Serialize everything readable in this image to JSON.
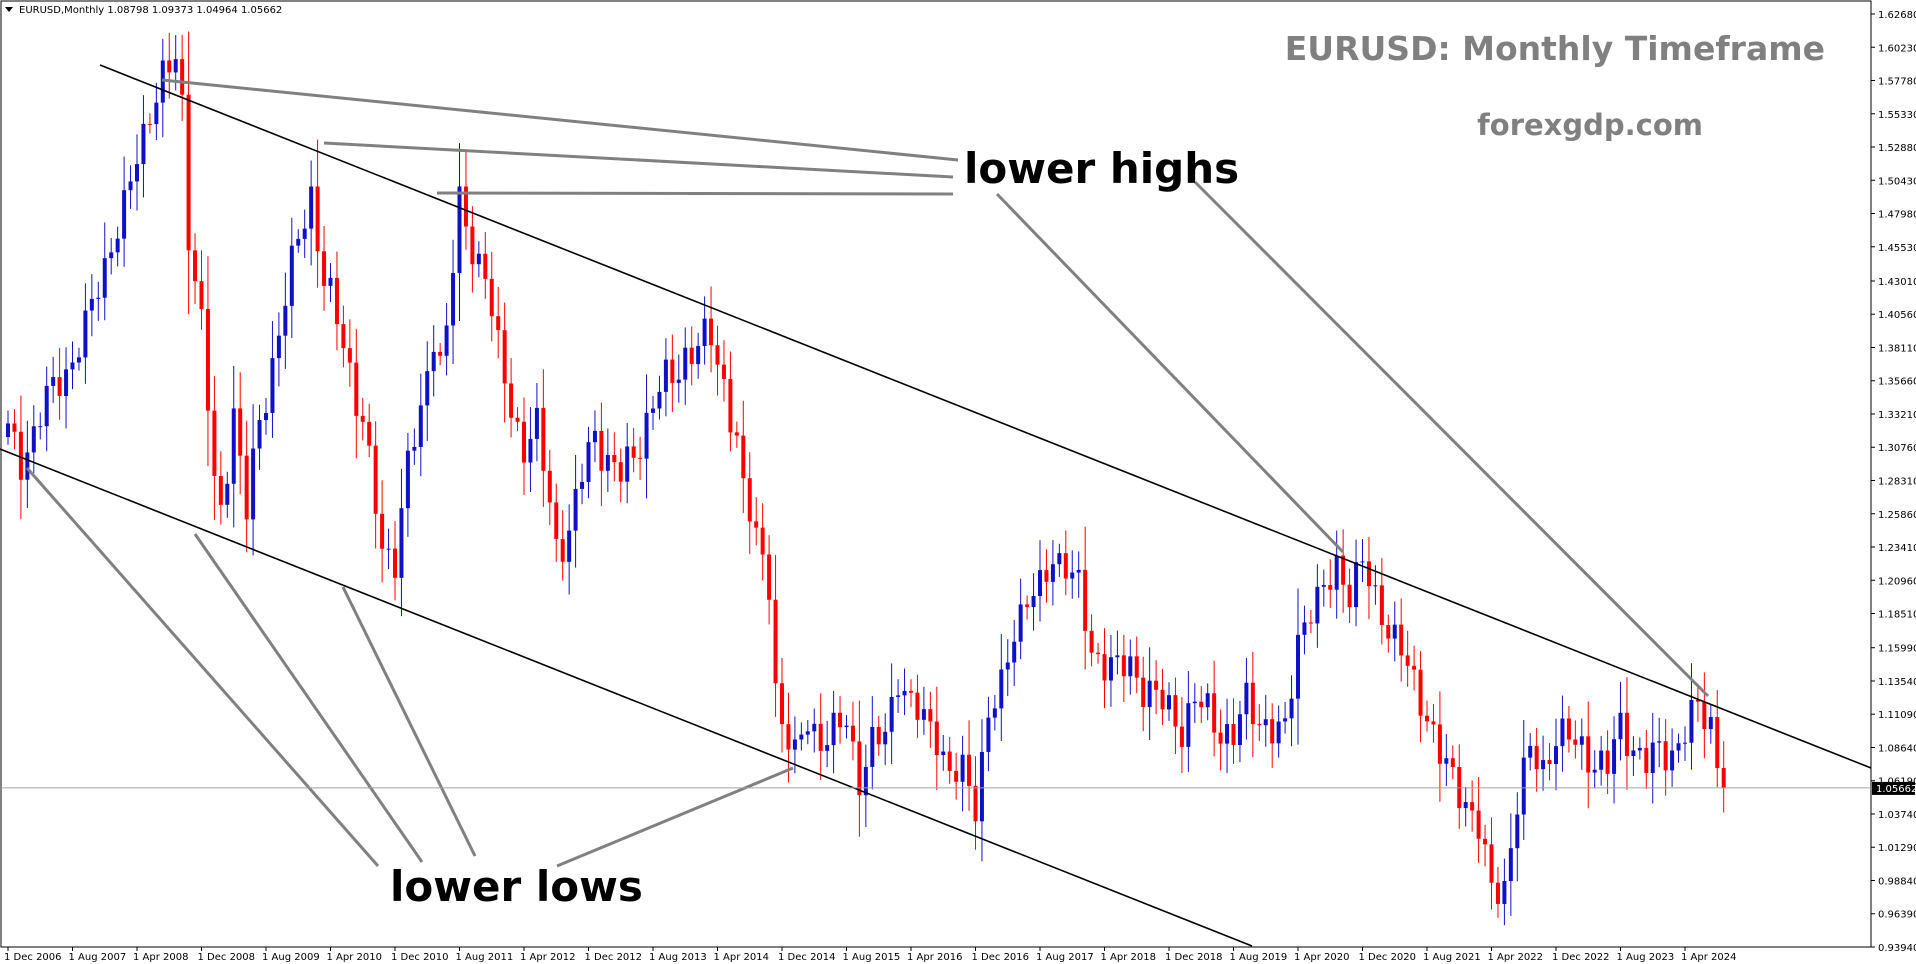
{
  "chart_data": {
    "type": "candlestick",
    "symbol_header": "EURUSD,Monthly  1.08798 1.09373 1.04964 1.05662",
    "title": "EURUSD: Monthly Timeframe",
    "subtitle": "forexgdp.com",
    "annotations": [
      "lower highs",
      "lower lows"
    ],
    "current_price_label": "1.05662",
    "current_price": 1.05662,
    "ylim": [
      0.9394,
      1.6268
    ],
    "y_ticks": [
      "1.62680",
      "1.60230",
      "1.57780",
      "1.55330",
      "1.52880",
      "1.50430",
      "1.47980",
      "1.45530",
      "1.43010",
      "1.40560",
      "1.38110",
      "1.35660",
      "1.33210",
      "1.30760",
      "1.28310",
      "1.25860",
      "1.23410",
      "1.20960",
      "1.18510",
      "1.15990",
      "1.13540",
      "1.11090",
      "1.08640",
      "1.06190",
      "1.03740",
      "1.01290",
      "0.98840",
      "0.96390",
      "0.93940"
    ],
    "x_ticks": [
      "1 Dec 2006",
      "1 Aug 2007",
      "1 Apr 2008",
      "1 Dec 2008",
      "1 Aug 2009",
      "1 Apr 2010",
      "1 Dec 2010",
      "1 Aug 2011",
      "1 Apr 2012",
      "1 Dec 2012",
      "1 Aug 2013",
      "1 Apr 2014",
      "1 Dec 2014",
      "1 Aug 2015",
      "1 Apr 2016",
      "1 Dec 2016",
      "1 Aug 2017",
      "1 Apr 2018",
      "1 Dec 2018",
      "1 Aug 2019",
      "1 Apr 2020",
      "1 Dec 2020",
      "1 Aug 2021",
      "1 Apr 2022",
      "1 Dec 2022",
      "1 Aug 2023",
      "1 Apr 2024"
    ],
    "bull_color": "#1010c8",
    "bear_color": "#ff0000",
    "anchors": [
      [
        0,
        1.318
      ],
      [
        2,
        1.3
      ],
      [
        4,
        1.318
      ],
      [
        6,
        1.34
      ],
      [
        8,
        1.36
      ],
      [
        10,
        1.372
      ],
      [
        12,
        1.392
      ],
      [
        14,
        1.428
      ],
      [
        16,
        1.46
      ],
      [
        18,
        1.48
      ],
      [
        20,
        1.52
      ],
      [
        22,
        1.56
      ],
      [
        24,
        1.578
      ],
      [
        26,
        1.59
      ],
      [
        27,
        1.56
      ],
      [
        28,
        1.47
      ],
      [
        30,
        1.4
      ],
      [
        32,
        1.276
      ],
      [
        33,
        1.258
      ],
      [
        35,
        1.338
      ],
      [
        37,
        1.26
      ],
      [
        39,
        1.322
      ],
      [
        41,
        1.372
      ],
      [
        43,
        1.418
      ],
      [
        45,
        1.458
      ],
      [
        47,
        1.496
      ],
      [
        49,
        1.432
      ],
      [
        51,
        1.398
      ],
      [
        53,
        1.365
      ],
      [
        55,
        1.33
      ],
      [
        58,
        1.226
      ],
      [
        60,
        1.23
      ],
      [
        62,
        1.298
      ],
      [
        64,
        1.325
      ],
      [
        66,
        1.395
      ],
      [
        67,
        1.374
      ],
      [
        68,
        1.398
      ],
      [
        70,
        1.482
      ],
      [
        72,
        1.455
      ],
      [
        74,
        1.44
      ],
      [
        76,
        1.375
      ],
      [
        78,
        1.335
      ],
      [
        80,
        1.311
      ],
      [
        82,
        1.32
      ],
      [
        85,
        1.237
      ],
      [
        87,
        1.246
      ],
      [
        89,
        1.285
      ],
      [
        91,
        1.318
      ],
      [
        93,
        1.3
      ],
      [
        95,
        1.285
      ],
      [
        97,
        1.3
      ],
      [
        99,
        1.33
      ],
      [
        101,
        1.35
      ],
      [
        103,
        1.357
      ],
      [
        105,
        1.378
      ],
      [
        107,
        1.382
      ],
      [
        109,
        1.386
      ],
      [
        111,
        1.356
      ],
      [
        113,
        1.314
      ],
      [
        114,
        1.27
      ],
      [
        116,
        1.243
      ],
      [
        118,
        1.214
      ],
      [
        119,
        1.13
      ],
      [
        120,
        1.095
      ],
      [
        122,
        1.08
      ],
      [
        124,
        1.116
      ],
      [
        126,
        1.083
      ],
      [
        128,
        1.095
      ],
      [
        130,
        1.116
      ],
      [
        132,
        1.058
      ],
      [
        134,
        1.083
      ],
      [
        136,
        1.105
      ],
      [
        138,
        1.138
      ],
      [
        140,
        1.11
      ],
      [
        142,
        1.114
      ],
      [
        144,
        1.098
      ],
      [
        146,
        1.057
      ],
      [
        148,
        1.073
      ],
      [
        150,
        1.05
      ],
      [
        152,
        1.103
      ],
      [
        154,
        1.13
      ],
      [
        156,
        1.18
      ],
      [
        158,
        1.192
      ],
      [
        160,
        1.2
      ],
      [
        162,
        1.232
      ],
      [
        164,
        1.22
      ],
      [
        166,
        1.2
      ],
      [
        168,
        1.16
      ],
      [
        170,
        1.15
      ],
      [
        172,
        1.14
      ],
      [
        174,
        1.15
      ],
      [
        176,
        1.133
      ],
      [
        178,
        1.12
      ],
      [
        180,
        1.115
      ],
      [
        182,
        1.103
      ],
      [
        184,
        1.118
      ],
      [
        186,
        1.112
      ],
      [
        188,
        1.102
      ],
      [
        190,
        1.093
      ],
      [
        192,
        1.118
      ],
      [
        194,
        1.11
      ],
      [
        196,
        1.1
      ],
      [
        198,
        1.093
      ],
      [
        200,
        1.17
      ],
      [
        202,
        1.192
      ],
      [
        204,
        1.195
      ],
      [
        206,
        1.222
      ],
      [
        208,
        1.205
      ],
      [
        210,
        1.218
      ],
      [
        212,
        1.195
      ],
      [
        214,
        1.18
      ],
      [
        216,
        1.155
      ],
      [
        218,
        1.13
      ],
      [
        220,
        1.115
      ],
      [
        222,
        1.081
      ],
      [
        224,
        1.058
      ],
      [
        226,
        1.05
      ],
      [
        228,
        1.03
      ],
      [
        230,
        0.975
      ],
      [
        232,
        0.986
      ],
      [
        234,
        1.05
      ],
      [
        236,
        1.08
      ],
      [
        238,
        1.07
      ],
      [
        240,
        1.1
      ],
      [
        242,
        1.09
      ],
      [
        244,
        1.084
      ],
      [
        246,
        1.08
      ],
      [
        248,
        1.07
      ],
      [
        250,
        1.1
      ],
      [
        252,
        1.09
      ],
      [
        254,
        1.075
      ],
      [
        256,
        1.08
      ],
      [
        258,
        1.085
      ],
      [
        260,
        1.1
      ],
      [
        262,
        1.112
      ],
      [
        264,
        1.105
      ],
      [
        266,
        1.056
      ]
    ]
  }
}
